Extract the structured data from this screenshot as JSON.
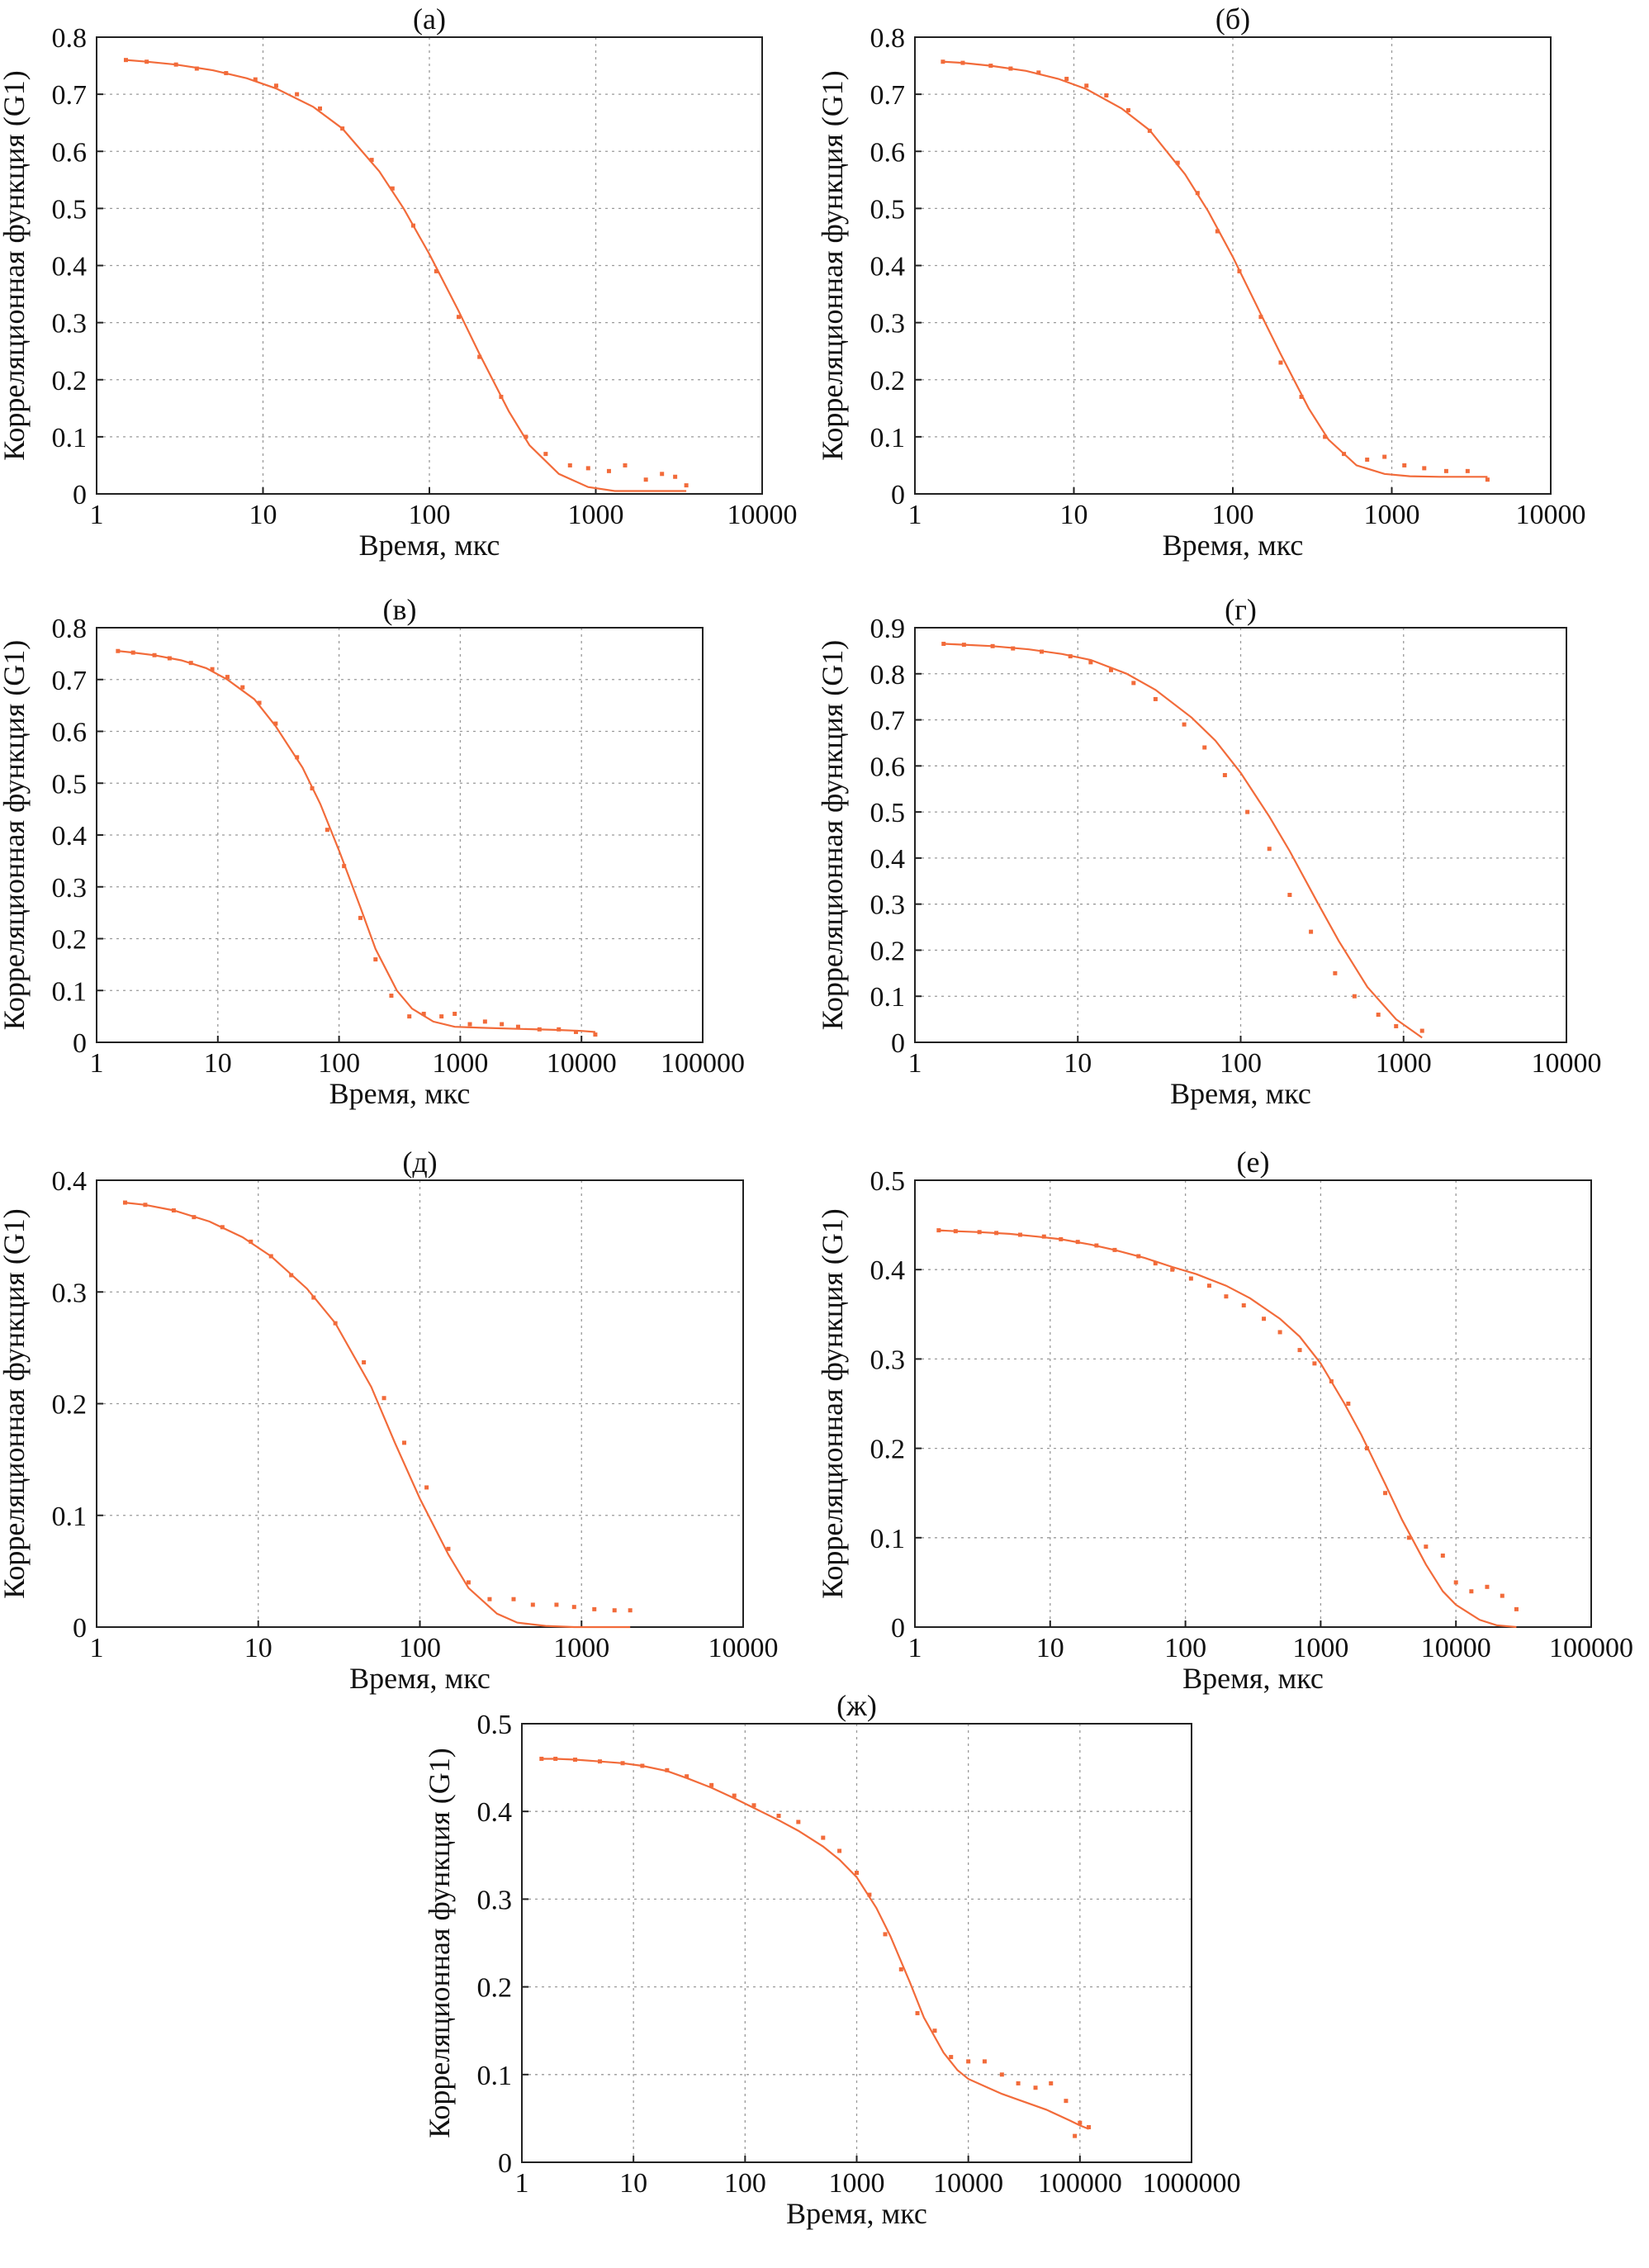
{
  "colors": {
    "curve": "#f26b3a",
    "grid": "#9a9a9a",
    "axis": "#222222"
  },
  "chart_data": [
    {
      "type": "scatter",
      "panel_label": "(а)",
      "xlabel": "Время, мкс",
      "ylabel": "Корреляционная функция (G1)",
      "xscale": "log",
      "xlim": [
        1,
        10000
      ],
      "ylim": [
        0,
        0.8
      ],
      "xticks": [
        "1",
        "10",
        "100",
        "1000",
        "10000"
      ],
      "yticks": [
        "0",
        "0.1",
        "0.2",
        "0.3",
        "0.4",
        "0.5",
        "0.6",
        "0.7",
        "0.8"
      ],
      "grid": true,
      "series": [
        {
          "kind": "points",
          "x": [
            1.5,
            2,
            3,
            4,
            6,
            9,
            12,
            16,
            22,
            30,
            45,
            60,
            80,
            110,
            150,
            200,
            270,
            380,
            500,
            700,
            900,
            1200,
            1500,
            2000,
            2500,
            3000,
            3500
          ],
          "y": [
            0.76,
            0.757,
            0.752,
            0.745,
            0.737,
            0.726,
            0.715,
            0.7,
            0.675,
            0.64,
            0.585,
            0.535,
            0.47,
            0.39,
            0.31,
            0.24,
            0.17,
            0.1,
            0.07,
            0.05,
            0.045,
            0.04,
            0.05,
            0.025,
            0.035,
            0.03,
            0.015
          ]
        },
        {
          "kind": "fit",
          "x": [
            1.5,
            2,
            3,
            5,
            8,
            12,
            20,
            30,
            50,
            70,
            100,
            150,
            200,
            300,
            400,
            600,
            900,
            1300,
            2000,
            3000,
            3500
          ],
          "y": [
            0.76,
            0.757,
            0.752,
            0.742,
            0.728,
            0.71,
            0.678,
            0.64,
            0.565,
            0.5,
            0.42,
            0.32,
            0.245,
            0.145,
            0.085,
            0.035,
            0.012,
            0.005,
            0.005,
            0.005,
            0.005
          ]
        }
      ]
    },
    {
      "type": "scatter",
      "panel_label": "(б)",
      "xlabel": "Время, мкс",
      "ylabel": "Корреляционная функция (G1)",
      "xscale": "log",
      "xlim": [
        1,
        10000
      ],
      "ylim": [
        0,
        0.8
      ],
      "xticks": [
        "1",
        "10",
        "100",
        "1000",
        "10000"
      ],
      "yticks": [
        "0",
        "0.1",
        "0.2",
        "0.3",
        "0.4",
        "0.5",
        "0.6",
        "0.7",
        "0.8"
      ],
      "grid": true,
      "series": [
        {
          "kind": "points",
          "x": [
            1.5,
            2,
            3,
            4,
            6,
            9,
            12,
            16,
            22,
            30,
            45,
            60,
            80,
            110,
            150,
            200,
            270,
            380,
            500,
            700,
            900,
            1200,
            1600,
            2200,
            3000,
            4000
          ],
          "y": [
            0.757,
            0.755,
            0.75,
            0.745,
            0.738,
            0.727,
            0.715,
            0.698,
            0.672,
            0.636,
            0.58,
            0.527,
            0.46,
            0.39,
            0.31,
            0.23,
            0.17,
            0.1,
            0.07,
            0.06,
            0.065,
            0.05,
            0.045,
            0.04,
            0.04,
            0.025
          ]
        },
        {
          "kind": "fit",
          "x": [
            1.5,
            2,
            3,
            5,
            8,
            12,
            20,
            30,
            50,
            70,
            100,
            150,
            200,
            300,
            400,
            600,
            900,
            1300,
            2000,
            3000,
            4000
          ],
          "y": [
            0.757,
            0.755,
            0.75,
            0.741,
            0.727,
            0.709,
            0.675,
            0.637,
            0.56,
            0.495,
            0.415,
            0.315,
            0.245,
            0.15,
            0.095,
            0.05,
            0.035,
            0.031,
            0.03,
            0.03,
            0.03
          ]
        }
      ]
    },
    {
      "type": "scatter",
      "panel_label": "(в)",
      "xlabel": "Время, мкс",
      "ylabel": "Корреляционная функция (G1)",
      "xscale": "log",
      "xlim": [
        1,
        100000
      ],
      "ylim": [
        0,
        0.8
      ],
      "xticks": [
        "1",
        "10",
        "100",
        "1000",
        "10000",
        "100000"
      ],
      "yticks": [
        "0",
        "0.1",
        "0.2",
        "0.3",
        "0.4",
        "0.5",
        "0.6",
        "0.7",
        "0.8"
      ],
      "grid": true,
      "series": [
        {
          "kind": "points",
          "x": [
            1.5,
            2,
            3,
            4,
            6,
            9,
            12,
            16,
            22,
            30,
            45,
            60,
            80,
            110,
            150,
            200,
            270,
            380,
            500,
            700,
            900,
            1200,
            1600,
            2200,
            3000,
            4500,
            6500,
            9000,
            13000
          ],
          "y": [
            0.755,
            0.752,
            0.747,
            0.741,
            0.732,
            0.72,
            0.705,
            0.685,
            0.655,
            0.615,
            0.55,
            0.49,
            0.41,
            0.34,
            0.24,
            0.16,
            0.09,
            0.05,
            0.055,
            0.05,
            0.055,
            0.035,
            0.04,
            0.035,
            0.03,
            0.025,
            0.025,
            0.02,
            0.015
          ]
        },
        {
          "kind": "fit",
          "x": [
            1.5,
            2,
            3,
            5,
            8,
            12,
            20,
            30,
            50,
            70,
            100,
            150,
            200,
            300,
            400,
            600,
            900,
            1500,
            3000,
            6000,
            10000,
            13000
          ],
          "y": [
            0.755,
            0.752,
            0.747,
            0.737,
            0.722,
            0.7,
            0.662,
            0.61,
            0.53,
            0.46,
            0.37,
            0.26,
            0.18,
            0.1,
            0.065,
            0.04,
            0.03,
            0.028,
            0.026,
            0.024,
            0.022,
            0.02
          ]
        }
      ]
    },
    {
      "type": "scatter",
      "panel_label": "(г)",
      "xlabel": "Время, мкс",
      "ylabel": "Корреляционная функция (G1)",
      "xscale": "log",
      "xlim": [
        1,
        10000
      ],
      "ylim": [
        0,
        0.9
      ],
      "xticks": [
        "1",
        "10",
        "100",
        "1000",
        "10000"
      ],
      "yticks": [
        "0",
        "0.1",
        "0.2",
        "0.3",
        "0.4",
        "0.5",
        "0.6",
        "0.7",
        "0.8",
        "0.9"
      ],
      "grid": true,
      "series": [
        {
          "kind": "points",
          "x": [
            1.5,
            2,
            3,
            4,
            6,
            9,
            12,
            16,
            22,
            30,
            45,
            60,
            80,
            110,
            150,
            200,
            270,
            380,
            500,
            700,
            900,
            1300
          ],
          "y": [
            0.865,
            0.863,
            0.86,
            0.855,
            0.848,
            0.838,
            0.825,
            0.808,
            0.78,
            0.745,
            0.69,
            0.64,
            0.58,
            0.5,
            0.42,
            0.32,
            0.24,
            0.15,
            0.1,
            0.06,
            0.035,
            0.025
          ]
        },
        {
          "kind": "fit",
          "x": [
            1.5,
            2,
            3,
            5,
            8,
            12,
            20,
            30,
            50,
            70,
            100,
            150,
            200,
            300,
            400,
            600,
            900,
            1300
          ],
          "y": [
            0.865,
            0.863,
            0.86,
            0.853,
            0.843,
            0.83,
            0.8,
            0.765,
            0.705,
            0.655,
            0.585,
            0.49,
            0.415,
            0.3,
            0.22,
            0.12,
            0.05,
            0.01
          ]
        }
      ]
    },
    {
      "type": "scatter",
      "panel_label": "(д)",
      "xlabel": "Время, мкс",
      "ylabel": "Корреляционная функция (G1)",
      "xscale": "log",
      "xlim": [
        1,
        10000
      ],
      "ylim": [
        0,
        0.4
      ],
      "xticks": [
        "1",
        "10",
        "100",
        "1000",
        "10000"
      ],
      "yticks": [
        "0",
        "0.1",
        "0.2",
        "0.3",
        "0.4"
      ],
      "grid": true,
      "series": [
        {
          "kind": "points",
          "x": [
            1.5,
            2,
            3,
            4,
            6,
            9,
            12,
            16,
            22,
            30,
            45,
            60,
            80,
            110,
            150,
            200,
            270,
            380,
            500,
            700,
            900,
            1200,
            1600,
            2000
          ],
          "y": [
            0.38,
            0.378,
            0.373,
            0.367,
            0.358,
            0.345,
            0.332,
            0.315,
            0.295,
            0.272,
            0.237,
            0.205,
            0.165,
            0.125,
            0.07,
            0.04,
            0.025,
            0.025,
            0.02,
            0.02,
            0.018,
            0.016,
            0.015,
            0.015
          ]
        },
        {
          "kind": "fit",
          "x": [
            1.5,
            2,
            3,
            5,
            8,
            12,
            20,
            30,
            50,
            70,
            100,
            150,
            200,
            300,
            400,
            600,
            900,
            1300,
            2000
          ],
          "y": [
            0.38,
            0.378,
            0.373,
            0.363,
            0.349,
            0.332,
            0.303,
            0.272,
            0.215,
            0.165,
            0.115,
            0.065,
            0.035,
            0.012,
            0.004,
            0.001,
            0.0,
            0.0,
            0.0
          ]
        }
      ]
    },
    {
      "type": "scatter",
      "panel_label": "(е)",
      "xlabel": "Время, мкс",
      "ylabel": "Корреляционная функция (G1)",
      "xscale": "log",
      "xlim": [
        1,
        100000
      ],
      "ylim": [
        0,
        0.5
      ],
      "xticks": [
        "1",
        "10",
        "100",
        "1000",
        "10000",
        "100000"
      ],
      "yticks": [
        "0",
        "0.1",
        "0.2",
        "0.3",
        "0.4",
        "0.5"
      ],
      "grid": true,
      "series": [
        {
          "kind": "points",
          "x": [
            1.5,
            2,
            3,
            4,
            6,
            9,
            12,
            16,
            22,
            30,
            45,
            60,
            80,
            110,
            150,
            200,
            270,
            380,
            500,
            700,
            900,
            1200,
            1600,
            2200,
            3000,
            4500,
            6000,
            8000,
            10000,
            13000,
            17000,
            22000,
            28000
          ],
          "y": [
            0.444,
            0.443,
            0.442,
            0.441,
            0.439,
            0.437,
            0.434,
            0.431,
            0.427,
            0.422,
            0.415,
            0.407,
            0.4,
            0.39,
            0.382,
            0.37,
            0.36,
            0.345,
            0.33,
            0.31,
            0.295,
            0.275,
            0.25,
            0.2,
            0.15,
            0.1,
            0.09,
            0.08,
            0.05,
            0.04,
            0.045,
            0.035,
            0.02
          ]
        },
        {
          "kind": "fit",
          "x": [
            1.5,
            2,
            3,
            5,
            8,
            12,
            20,
            30,
            50,
            80,
            120,
            200,
            300,
            500,
            700,
            1000,
            1500,
            2000,
            3000,
            4000,
            6000,
            8000,
            10000,
            15000,
            20000,
            28000
          ],
          "y": [
            0.444,
            0.443,
            0.442,
            0.44,
            0.437,
            0.434,
            0.428,
            0.422,
            0.413,
            0.403,
            0.395,
            0.382,
            0.368,
            0.345,
            0.325,
            0.295,
            0.25,
            0.215,
            0.16,
            0.12,
            0.07,
            0.04,
            0.025,
            0.008,
            0.002,
            0.0
          ]
        }
      ]
    },
    {
      "type": "scatter",
      "panel_label": "(ж)",
      "xlabel": "Время, мкс",
      "ylabel": "Корреляционная функция (G1)",
      "xscale": "log",
      "xlim": [
        1,
        1000000
      ],
      "ylim": [
        0,
        0.5
      ],
      "xticks": [
        "1",
        "10",
        "100",
        "1000",
        "10000",
        "100000",
        "1000000"
      ],
      "yticks": [
        "0",
        "0.1",
        "0.2",
        "0.3",
        "0.4",
        "0.5"
      ],
      "grid": true,
      "series": [
        {
          "kind": "points",
          "x": [
            1.5,
            2,
            3,
            5,
            8,
            12,
            20,
            30,
            50,
            80,
            120,
            200,
            300,
            500,
            700,
            1000,
            1300,
            1800,
            2500,
            3500,
            5000,
            7000,
            10000,
            14000,
            20000,
            28000,
            40000,
            55000,
            75000,
            90000,
            100000,
            120000
          ],
          "y": [
            0.46,
            0.46,
            0.459,
            0.457,
            0.455,
            0.452,
            0.447,
            0.44,
            0.43,
            0.418,
            0.407,
            0.395,
            0.388,
            0.37,
            0.355,
            0.33,
            0.305,
            0.26,
            0.22,
            0.17,
            0.15,
            0.12,
            0.115,
            0.115,
            0.1,
            0.09,
            0.085,
            0.09,
            0.07,
            0.03,
            0.045,
            0.04
          ]
        },
        {
          "kind": "fit",
          "x": [
            1.5,
            2,
            3,
            5,
            8,
            12,
            20,
            30,
            50,
            80,
            120,
            200,
            300,
            500,
            700,
            1000,
            1500,
            2000,
            3000,
            4000,
            6000,
            8000,
            10000,
            15000,
            20000,
            30000,
            50000,
            80000,
            100000,
            120000
          ],
          "y": [
            0.46,
            0.46,
            0.459,
            0.457,
            0.455,
            0.452,
            0.446,
            0.438,
            0.427,
            0.415,
            0.404,
            0.39,
            0.378,
            0.36,
            0.345,
            0.325,
            0.29,
            0.258,
            0.205,
            0.165,
            0.125,
            0.105,
            0.095,
            0.085,
            0.078,
            0.07,
            0.06,
            0.048,
            0.042,
            0.038
          ]
        }
      ]
    }
  ]
}
